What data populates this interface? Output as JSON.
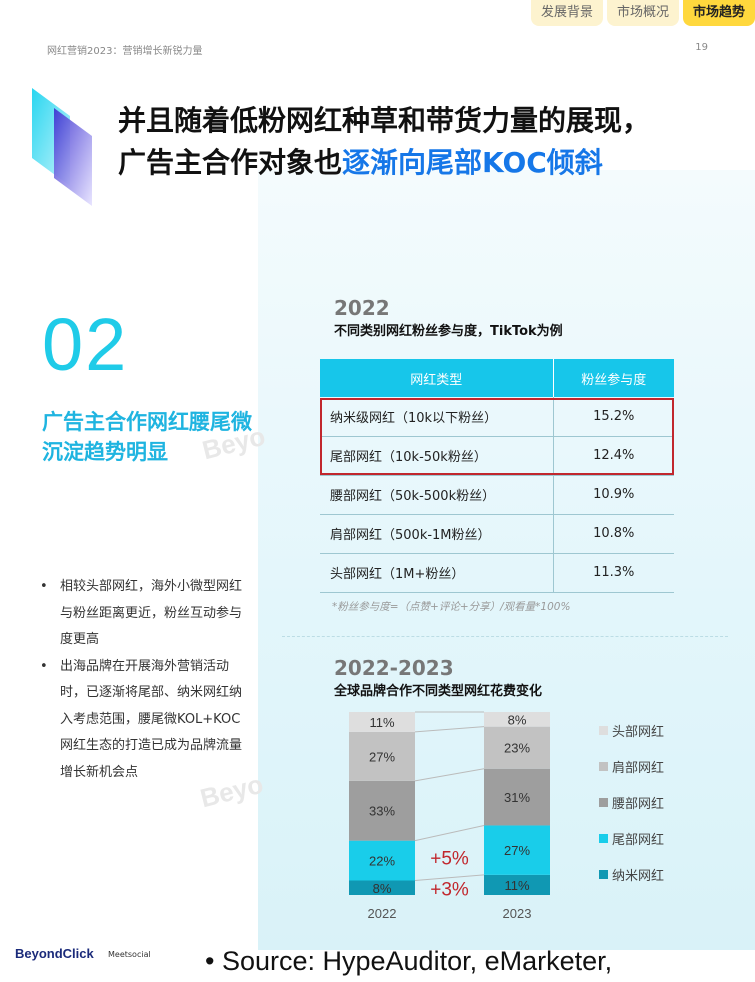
{
  "nav": {
    "tabs": [
      "发展背景",
      "市场概况",
      "市场趋势"
    ]
  },
  "header": {
    "doc_title": "网红营销2023：营销增长新锐力量",
    "page_number": "19"
  },
  "headline": {
    "line1": "并且随着低粉网红种草和带货力量的展现，",
    "line2_prefix": "广告主合作对象也",
    "line2_highlight": "逐渐向尾部KOC倾斜"
  },
  "section": {
    "number": "02",
    "title": "广告主合作网红腰尾微沉淀趋势明显"
  },
  "bullets": [
    "相较头部网红，海外小微型网红与粉丝距离更近，粉丝互动参与度更高",
    "出海品牌在开展海外营销活动时，已逐渐将尾部、纳米网红纳入考虑范围，腰尾微KOL+KOC网红生态的打造已成为品牌流量增长新机会点"
  ],
  "watermark": "Beyo",
  "table_block": {
    "year": "2022",
    "subtitle": "不同类别网红粉丝参与度，TikTok为例",
    "headers": [
      "网红类型",
      "粉丝参与度"
    ],
    "rows": [
      [
        "纳米级网红（10k以下粉丝）",
        "15.2%"
      ],
      [
        "尾部网红（10k-50k粉丝）",
        "12.4%"
      ],
      [
        "腰部网红（50k-500k粉丝）",
        "10.9%"
      ],
      [
        "肩部网红（500k-1M粉丝）",
        "10.8%"
      ],
      [
        "头部网红（1M+粉丝）",
        "11.3%"
      ]
    ],
    "footnote": "*粉丝参与度=（点赞+评论+分享）/观看量*100%"
  },
  "chart_block": {
    "year": "2022-2023",
    "subtitle": "全球品牌合作不同类型网红花费变化"
  },
  "chart_data": {
    "type": "bar",
    "stacked": true,
    "categories": [
      "2022",
      "2023"
    ],
    "series": [
      {
        "name": "纳米网红",
        "values": [
          8,
          11
        ],
        "labels": [
          "8%",
          "11%"
        ],
        "color": "#1098b3"
      },
      {
        "name": "尾部网红",
        "values": [
          22,
          27
        ],
        "labels": [
          "22%",
          "27%"
        ],
        "color": "#19cdea"
      },
      {
        "name": "腰部网红",
        "values": [
          33,
          31
        ],
        "labels": [
          "33%",
          "31%"
        ],
        "color": "#9e9e9e"
      },
      {
        "name": "肩部网红",
        "values": [
          27,
          23
        ],
        "labels": [
          "27%",
          "23%"
        ],
        "color": "#c2c2c2"
      },
      {
        "name": "头部网红",
        "values": [
          11,
          8
        ],
        "labels": [
          "11%",
          "8%"
        ],
        "color": "#dedede"
      }
    ],
    "legend": [
      "头部网红",
      "肩部网红",
      "腰部网红",
      "尾部网红",
      "纳米网红"
    ],
    "annotations": [
      {
        "text": "+5%",
        "series": "尾部网红"
      },
      {
        "text": "+3%",
        "series": "纳米网红"
      }
    ],
    "annotation_color": "#c1272d",
    "legend_position": "right"
  },
  "footer": {
    "logo": "BeyondClick",
    "partner": "Meetsocial",
    "source": "• Source: HypeAuditor, eMarketer,"
  }
}
